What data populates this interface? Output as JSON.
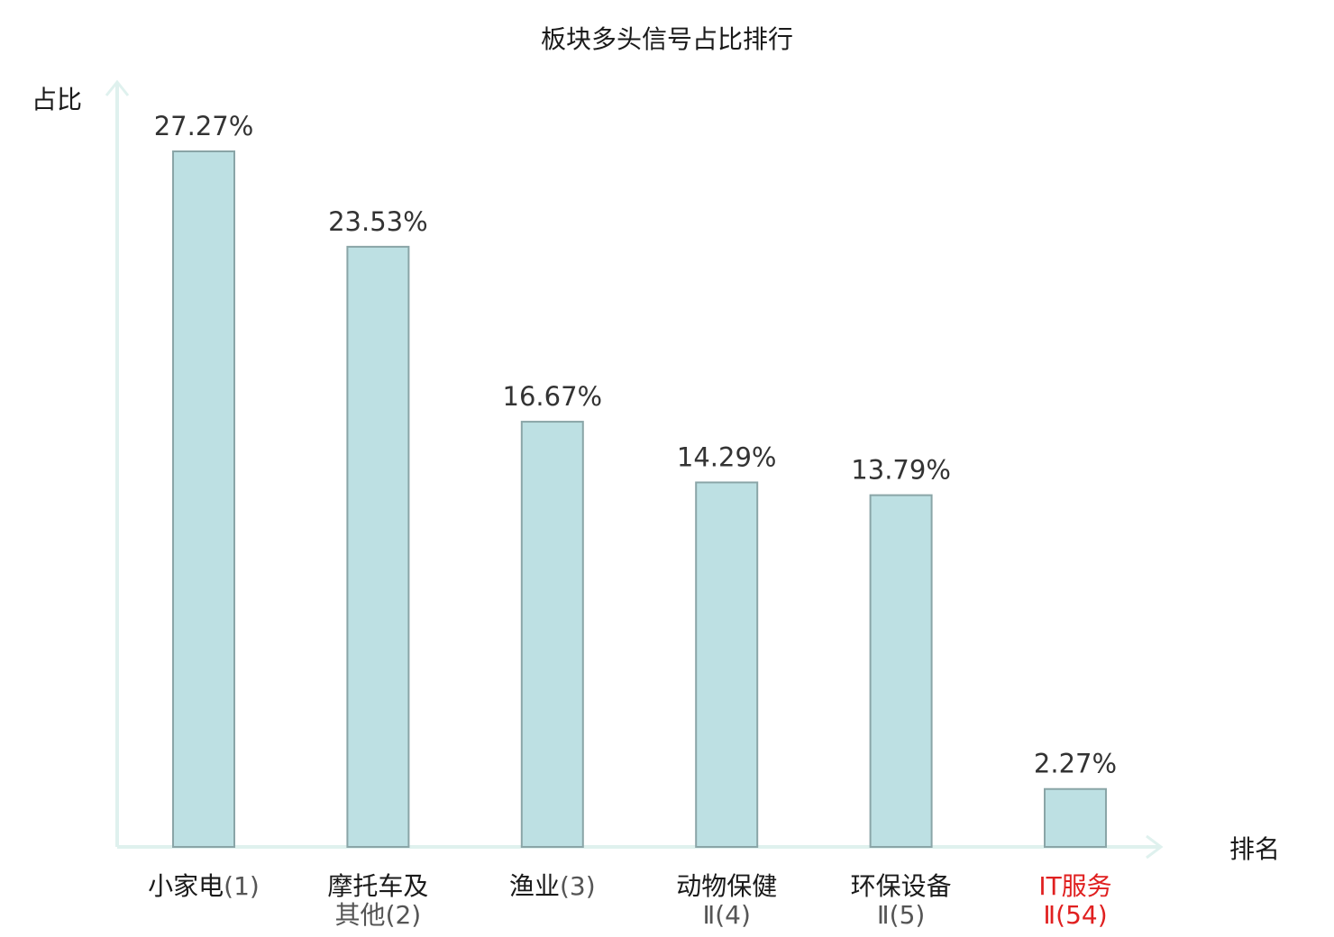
{
  "chart_data": {
    "type": "bar",
    "title": "板块多头信号占比排行",
    "ylabel": "占比",
    "xlabel": "排名",
    "categories": [
      {
        "name": [
          "小家电"
        ],
        "rank": "(1)",
        "highlight": false
      },
      {
        "name": [
          "摩托车及",
          "其他"
        ],
        "rank": "(2)",
        "highlight": false
      },
      {
        "name": [
          "渔业"
        ],
        "rank": "(3)",
        "highlight": false
      },
      {
        "name": [
          "动物保健",
          "Ⅱ"
        ],
        "rank": "(4)",
        "highlight": false
      },
      {
        "name": [
          "环保设备",
          "Ⅱ"
        ],
        "rank": "(5)",
        "highlight": false
      },
      {
        "name": [
          "IT服务",
          "Ⅱ"
        ],
        "rank": "(54)",
        "highlight": true
      }
    ],
    "values": [
      27.27,
      23.53,
      16.67,
      14.29,
      13.79,
      2.27
    ],
    "value_labels": [
      "27.27%",
      "23.53%",
      "16.67%",
      "14.29%",
      "13.79%",
      "2.27%"
    ],
    "ylim": [
      0,
      30
    ],
    "grid": false,
    "legend": "none",
    "colors": {
      "bar_fill": "#bde0e3",
      "bar_stroke": "#8aa5a7",
      "axis": "#dff1ee",
      "text": "#1a1a1a",
      "rank_text": "#555555",
      "highlight": "#e02020"
    }
  }
}
